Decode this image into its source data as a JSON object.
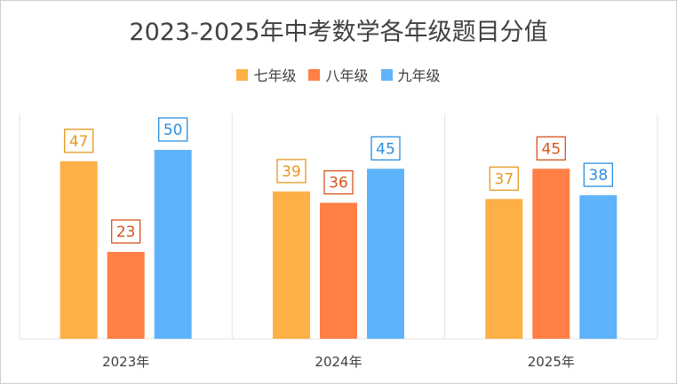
{
  "chart_data": {
    "type": "bar",
    "title": "2023-2025年中考数学各年级题目分值",
    "categories": [
      "2023年",
      "2024年",
      "2025年"
    ],
    "series": [
      {
        "name": "七年级",
        "values": [
          47,
          39,
          37
        ],
        "color": "#FDB045",
        "label_color": "#E59A20"
      },
      {
        "name": "八年级",
        "values": [
          23,
          36,
          45
        ],
        "color": "#FF7F45",
        "label_color": "#D9531E"
      },
      {
        "name": "九年级",
        "values": [
          50,
          45,
          38
        ],
        "color": "#5EB3FB",
        "label_color": "#2A8FE0"
      }
    ],
    "ylim": [
      0,
      50
    ],
    "grid": false,
    "legend_position": "top"
  }
}
